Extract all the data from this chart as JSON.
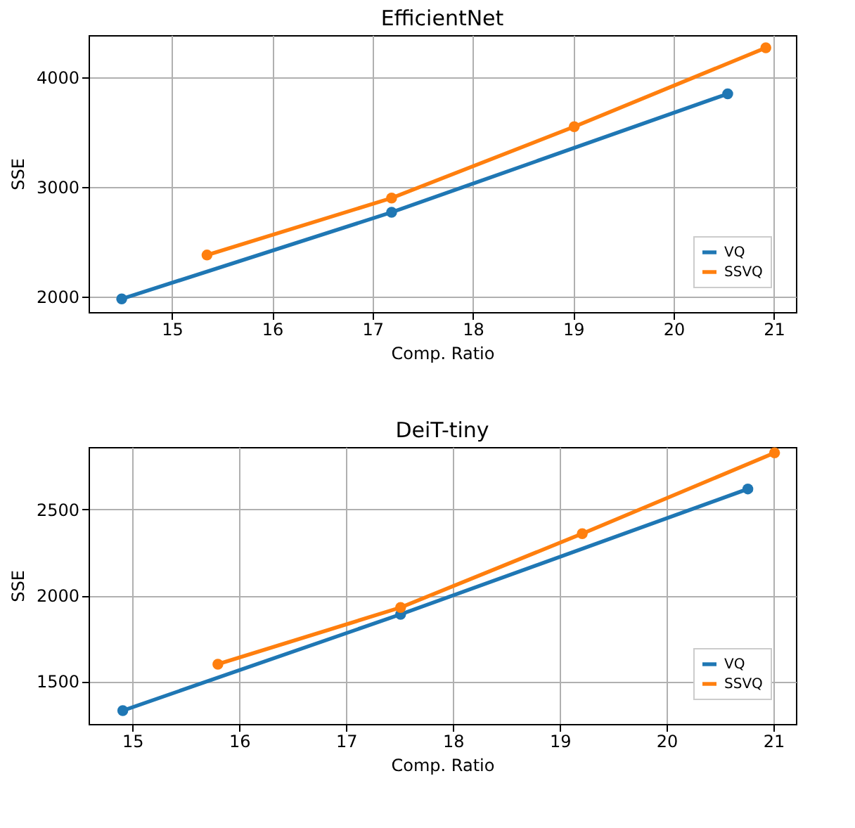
{
  "chart_data": [
    {
      "type": "line",
      "title": "EfficientNet",
      "xlabel": "Comp. Ratio",
      "ylabel": "SSE",
      "xlim": [
        14.17,
        21.22
      ],
      "ylim": [
        1860,
        4385
      ],
      "xticks": [
        15,
        16,
        17,
        18,
        19,
        20,
        21
      ],
      "yticks": [
        2000,
        3000,
        4000
      ],
      "grid": true,
      "legend": "bottom right",
      "marker": "circle",
      "line_style": "solid",
      "series": [
        {
          "name": "VQ",
          "color": "#1f77b4",
          "x": [
            14.5,
            17.19,
            20.54
          ],
          "values": [
            1980,
            2770,
            3850
          ]
        },
        {
          "name": "SSVQ",
          "color": "#ff7f0e",
          "x": [
            15.35,
            17.19,
            19.01,
            20.92
          ],
          "values": [
            2380,
            2900,
            3550,
            4270
          ]
        }
      ]
    },
    {
      "type": "line",
      "title": "DeiT-tiny",
      "xlabel": "Comp. Ratio",
      "ylabel": "SSE",
      "xlim": [
        14.59,
        21.21
      ],
      "ylim": [
        1252,
        2864
      ],
      "xticks": [
        15,
        16,
        17,
        18,
        19,
        20,
        21
      ],
      "yticks": [
        1500,
        2000,
        2500
      ],
      "grid": true,
      "legend": "bottom right",
      "marker": "circle",
      "line_style": "solid",
      "series": [
        {
          "name": "VQ",
          "color": "#1f77b4",
          "x": [
            14.91,
            17.51,
            20.76
          ],
          "values": [
            1330,
            1890,
            2620
          ]
        },
        {
          "name": "SSVQ",
          "color": "#ff7f0e",
          "x": [
            15.8,
            17.51,
            19.21,
            21.01
          ],
          "values": [
            1600,
            1930,
            2360,
            2830
          ]
        }
      ]
    }
  ]
}
